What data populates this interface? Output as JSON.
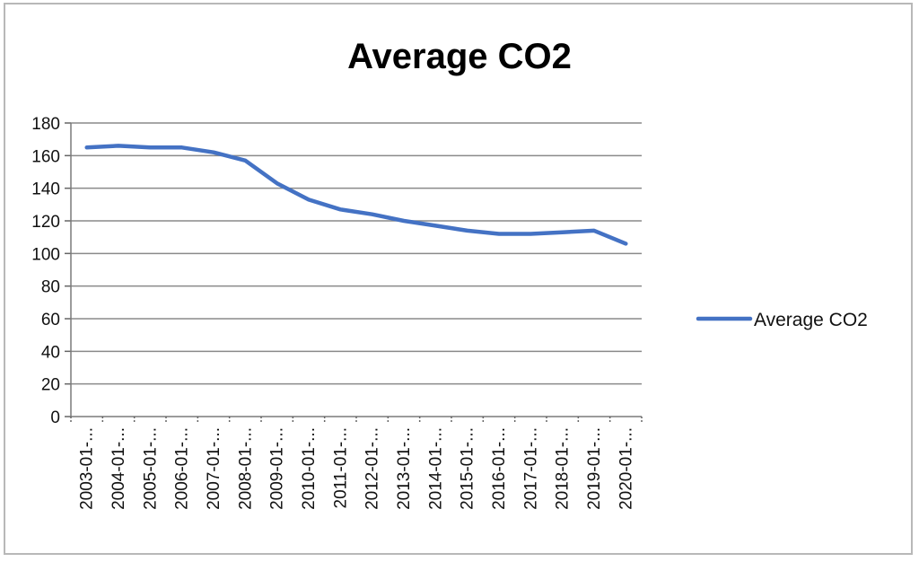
{
  "chart_data": {
    "type": "line",
    "title": "Average CO2",
    "xlabel": "",
    "ylabel": "",
    "categories": [
      "2003-01-...",
      "2004-01-...",
      "2005-01-...",
      "2006-01-...",
      "2007-01-...",
      "2008-01-...",
      "2009-01-...",
      "2010-01-...",
      "2011-01-...",
      "2012-01-...",
      "2013-01-...",
      "2014-01-...",
      "2015-01-...",
      "2016-01-...",
      "2017-01-...",
      "2018-01-...",
      "2019-01-...",
      "2020-01-..."
    ],
    "series": [
      {
        "name": "Average CO2",
        "color": "#4472c4",
        "values": [
          165,
          166,
          165,
          165,
          162,
          157,
          143,
          133,
          127,
          124,
          120,
          117,
          114,
          112,
          112,
          113,
          114,
          106
        ]
      }
    ],
    "ylim": [
      0,
      180
    ],
    "yticks": [
      0,
      20,
      40,
      60,
      80,
      100,
      120,
      140,
      160,
      180
    ],
    "grid": true,
    "legend_position": "right"
  }
}
